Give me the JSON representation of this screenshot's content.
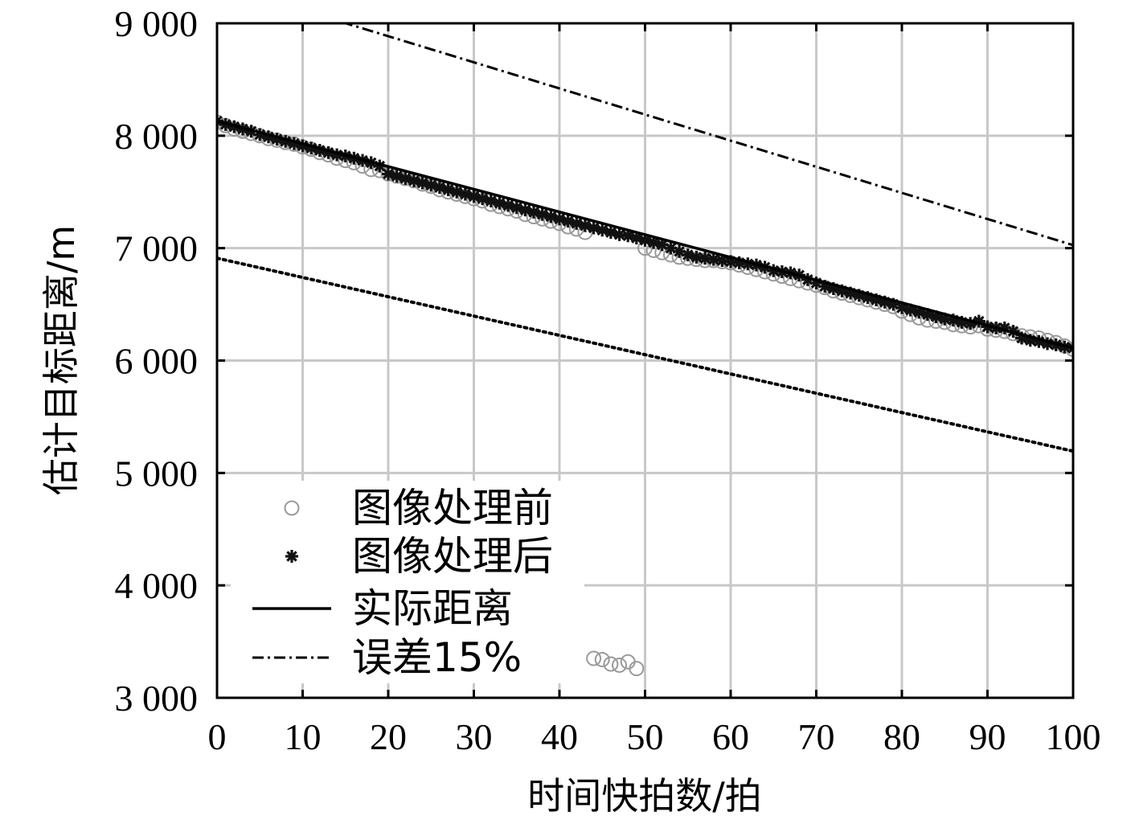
{
  "chart_data": {
    "type": "line",
    "xlabel": "时间快拍数/拍",
    "ylabel": "估计目标距离/m",
    "xlim": [
      0,
      100
    ],
    "ylim": [
      3000,
      9000
    ],
    "xticks": [
      0,
      10,
      20,
      30,
      40,
      50,
      60,
      70,
      80,
      90,
      100
    ],
    "xtick_labels": [
      "0",
      "10",
      "20",
      "30",
      "40",
      "50",
      "60",
      "70",
      "80",
      "90",
      "100"
    ],
    "yticks": [
      3000,
      4000,
      5000,
      6000,
      7000,
      8000,
      9000
    ],
    "ytick_labels": [
      "3 000",
      "4 000",
      "5 000",
      "6 000",
      "7 000",
      "8 000",
      "9 000"
    ],
    "grid": true,
    "legend_position": "lower-left",
    "series": [
      {
        "name": "图像处理前",
        "style": "hollow-circle-markers",
        "color": "#9a9a9a",
        "x": [
          0,
          1,
          2,
          3,
          4,
          5,
          6,
          7,
          8,
          9,
          10,
          11,
          12,
          13,
          14,
          15,
          16,
          17,
          18,
          19,
          20,
          21,
          22,
          23,
          24,
          25,
          26,
          27,
          28,
          29,
          30,
          31,
          32,
          33,
          34,
          35,
          36,
          37,
          38,
          39,
          40,
          41,
          42,
          43,
          44,
          45,
          46,
          47,
          48,
          49,
          50,
          51,
          52,
          53,
          54,
          55,
          56,
          57,
          58,
          59,
          60,
          61,
          62,
          63,
          64,
          65,
          66,
          67,
          68,
          69,
          70,
          71,
          72,
          73,
          74,
          75,
          76,
          77,
          78,
          79,
          80,
          81,
          82,
          83,
          84,
          85,
          86,
          87,
          88,
          89,
          90,
          91,
          92,
          93,
          94,
          95,
          96,
          97,
          98,
          99,
          100
        ],
        "y": [
          8120,
          8090,
          8060,
          8040,
          8020,
          8000,
          7975,
          7960,
          7940,
          7925,
          7900,
          7880,
          7850,
          7830,
          7800,
          7780,
          7760,
          7730,
          7700,
          7690,
          7660,
          7640,
          7620,
          7600,
          7570,
          7550,
          7520,
          7500,
          7480,
          7460,
          7440,
          7420,
          7390,
          7370,
          7350,
          7330,
          7300,
          7280,
          7260,
          7240,
          7220,
          7190,
          7170,
          7140,
          3350,
          3340,
          3300,
          3290,
          3320,
          3260,
          7000,
          6980,
          6960,
          6940,
          6920,
          6910,
          6900,
          6890,
          6890,
          6880,
          6870,
          6850,
          6830,
          6810,
          6790,
          6770,
          6750,
          6730,
          6710,
          6690,
          6670,
          6650,
          6620,
          6600,
          6580,
          6560,
          6540,
          6520,
          6500,
          6480,
          6440,
          6410,
          6380,
          6360,
          6350,
          6340,
          6320,
          6310,
          6300,
          6310,
          6280,
          6270,
          6260,
          6240,
          6220,
          6210,
          6200,
          6180,
          6160,
          6130,
          6100
        ]
      },
      {
        "name": "图像处理后",
        "style": "asterisk-markers",
        "color": "#111111",
        "x": [
          0,
          1,
          2,
          3,
          4,
          5,
          6,
          7,
          8,
          9,
          10,
          11,
          12,
          13,
          14,
          15,
          16,
          17,
          18,
          19,
          20,
          21,
          22,
          23,
          24,
          25,
          26,
          27,
          28,
          29,
          30,
          31,
          32,
          33,
          34,
          35,
          36,
          37,
          38,
          39,
          40,
          41,
          42,
          43,
          44,
          45,
          46,
          47,
          48,
          49,
          50,
          51,
          52,
          53,
          54,
          55,
          56,
          57,
          58,
          59,
          60,
          61,
          62,
          63,
          64,
          65,
          66,
          67,
          68,
          69,
          70,
          71,
          72,
          73,
          74,
          75,
          76,
          77,
          78,
          79,
          80,
          81,
          82,
          83,
          84,
          85,
          86,
          87,
          88,
          89,
          90,
          91,
          92,
          93,
          94,
          95,
          96,
          97,
          98,
          99,
          100
        ],
        "y": [
          8130,
          8100,
          8080,
          8060,
          8040,
          8010,
          7990,
          7970,
          7950,
          7930,
          7910,
          7890,
          7870,
          7850,
          7830,
          7820,
          7800,
          7780,
          7760,
          7730,
          7660,
          7640,
          7620,
          7600,
          7580,
          7560,
          7540,
          7520,
          7500,
          7480,
          7460,
          7440,
          7420,
          7400,
          7380,
          7360,
          7340,
          7320,
          7300,
          7280,
          7260,
          7240,
          7220,
          7200,
          7180,
          7160,
          7140,
          7120,
          7110,
          7090,
          7070,
          7050,
          7030,
          7000,
          6970,
          6940,
          6920,
          6910,
          6900,
          6890,
          6880,
          6870,
          6860,
          6850,
          6830,
          6800,
          6790,
          6780,
          6760,
          6720,
          6690,
          6660,
          6640,
          6620,
          6600,
          6580,
          6560,
          6540,
          6520,
          6500,
          6470,
          6450,
          6430,
          6410,
          6390,
          6370,
          6360,
          6340,
          6330,
          6350,
          6300,
          6290,
          6290,
          6260,
          6200,
          6180,
          6170,
          6150,
          6140,
          6120,
          6110
        ]
      },
      {
        "name": "实际距离",
        "style": "solid-line",
        "color": "#000000",
        "x": [
          0,
          100
        ],
        "y": [
          8130,
          6110
        ]
      },
      {
        "name": "误差15%",
        "style": "dash-dot-line",
        "color": "#000000",
        "x": [
          0,
          100
        ],
        "y": [
          9350,
          7027
        ]
      },
      {
        "style": "dotted-line",
        "color": "#000000",
        "x": [
          0,
          100
        ],
        "y": [
          6911,
          5194
        ]
      }
    ]
  }
}
